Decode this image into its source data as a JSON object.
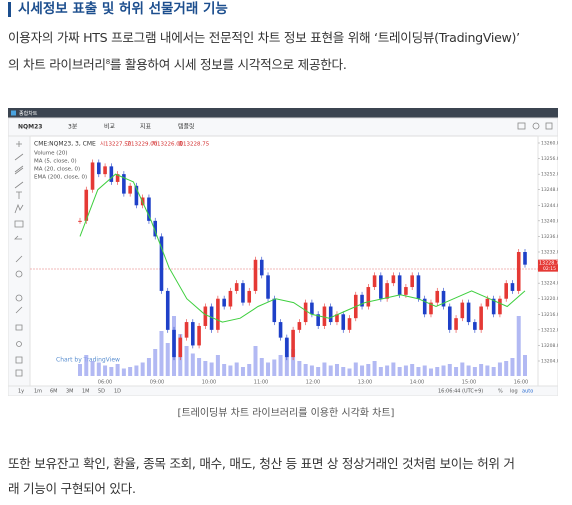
{
  "heading": "시세정보 표출 및 허위 선물거래 기능",
  "intro": {
    "line1": "이용자의 가짜 HTS 프로그램 내에서는 전문적인 차트 정보 표현을 위해 ‘트레이딩뷰(TradingView)’",
    "line2a": "의 차트 라이브러리",
    "footnote": "8",
    "line2b": "를 활용하여 시세 정보를 시각적으로 제공한다."
  },
  "screenshot": {
    "window_title": "종합차트",
    "toolbar": [
      "NQM23",
      "3분",
      "비교",
      "지표",
      "템플릿"
    ],
    "legend": {
      "symbol": "CME:NQM23, 3, CME",
      "ohlc": [
        "시13227.50",
        "고13229.00",
        "저13226.00",
        "종13228.75"
      ],
      "indicators": [
        "Volume (20)",
        "MA (5, close, 0)",
        "MA (20, close, 0)",
        "EMA (200, close, 0)"
      ]
    },
    "watermark": "Chart by TradingView",
    "chart": {
      "type": "candlestick",
      "closes": [
        13240,
        13248,
        13255,
        13252,
        13254,
        13250,
        13252,
        13247,
        13249,
        13244,
        13246,
        13240,
        13236,
        13222,
        13212,
        13205,
        13210,
        13214,
        13208,
        13213,
        13218,
        13212,
        13220,
        13218,
        13222,
        13224,
        13219,
        13222,
        13230,
        13226,
        13220,
        13214,
        13210,
        13205,
        13212,
        13214,
        13219,
        13216,
        13213,
        13218,
        13214,
        13216,
        13212,
        13215,
        13221,
        13218,
        13223,
        13226,
        13220,
        13224,
        13226,
        13221,
        13223,
        13226,
        13220,
        13216,
        13219,
        13222,
        13218,
        13212,
        13215,
        13219,
        13214,
        13212,
        13218,
        13220,
        13216,
        13220,
        13224,
        13222,
        13232,
        13228.75
      ],
      "ma": [
        13236,
        13248,
        13252,
        13250,
        13240,
        13228,
        13220,
        13216,
        13214,
        13215,
        13218,
        13220,
        13219,
        13216,
        13215,
        13217,
        13219,
        13220,
        13221,
        13220,
        13218,
        13220,
        13222,
        13220,
        13218,
        13222
      ],
      "volumes": [
        8,
        14,
        10,
        9,
        7,
        6,
        8,
        5,
        6,
        7,
        9,
        12,
        18,
        30,
        22,
        40,
        28,
        20,
        15,
        12,
        10,
        9,
        14,
        8,
        7,
        9,
        6,
        8,
        20,
        12,
        9,
        11,
        14,
        25,
        18,
        10,
        8,
        7,
        6,
        9,
        7,
        8,
        6,
        5,
        9,
        7,
        8,
        10,
        6,
        7,
        9,
        6,
        7,
        8,
        6,
        7,
        5,
        6,
        7,
        8,
        6,
        9,
        7,
        6,
        8,
        7,
        6,
        9,
        10,
        12,
        40,
        14
      ],
      "ylim": [
        13204,
        13260
      ],
      "yticks": [
        {
          "value": 13260,
          "label": "13260.00"
        },
        {
          "value": 13256,
          "label": "13256.00"
        },
        {
          "value": 13252,
          "label": "13252.00"
        },
        {
          "value": 13248,
          "label": "13248.00"
        },
        {
          "value": 13244,
          "label": "13244.00"
        },
        {
          "value": 13240,
          "label": "13240.00"
        },
        {
          "value": 13236,
          "label": "13236.00"
        },
        {
          "value": 13232,
          "label": "13232.00"
        },
        {
          "value": 13224,
          "label": "13224.00"
        },
        {
          "value": 13220,
          "label": "13220.00"
        },
        {
          "value": 13216,
          "label": "13216.00"
        },
        {
          "value": 13212,
          "label": "13212.00"
        },
        {
          "value": 13208,
          "label": "13208.00"
        },
        {
          "value": 13204,
          "label": "13204.00"
        }
      ],
      "last": {
        "value": 13228.75,
        "label": "13228.75",
        "countdown": "02:15"
      },
      "time_labels": [
        "06:00",
        "09:00",
        "10:00",
        "11:00",
        "12:00",
        "13:00",
        "14:00",
        "15:00",
        "16:00"
      ]
    },
    "periods": [
      "1y",
      "1m",
      "6M",
      "3M",
      "1M",
      "5D",
      "1D"
    ],
    "clock": "16:06:44 (UTC+9)",
    "scale_options": [
      "%",
      "log",
      "auto"
    ]
  },
  "caption": "[트레이딩뷰 차트 라이브러리를 이용한 시각화 차트]",
  "outro": {
    "line1": "또한 보유잔고 확인, 환율, 종목 조회, 매수, 매도, 청산 등 표면 상 정상거래인 것처럼 보이는 허위 거",
    "line2": "래 기능이 구현되어 있다."
  }
}
